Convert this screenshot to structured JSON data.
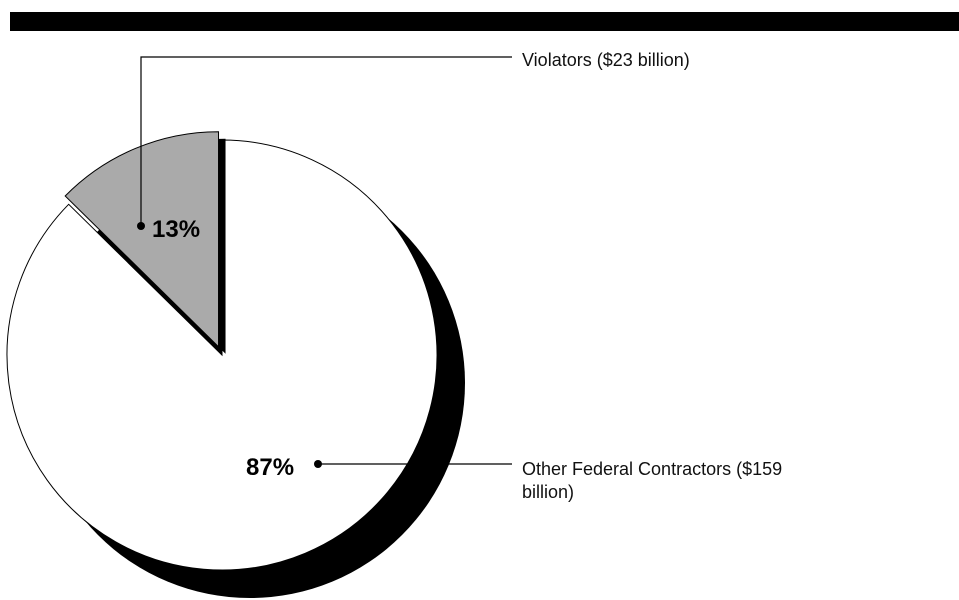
{
  "chart_data": {
    "type": "pie",
    "slices": [
      {
        "label_lines": [
          "Violators ($23 billion)"
        ],
        "value_billion": 23,
        "percent": 13,
        "percent_label": "13%",
        "color": "#aaaaaa"
      },
      {
        "label_lines": [
          "Other Federal Contractors ($159",
          "billion)"
        ],
        "value_billion": 159,
        "percent": 87,
        "percent_label": "87%",
        "color": "#ffffff"
      }
    ],
    "shadow_color": "#000000",
    "outline_color": "#000000",
    "exploded_slice": "Violators",
    "three_d_shadow": true
  },
  "colors": {
    "top_rule": "#000000",
    "leader_lines": "#000000"
  }
}
